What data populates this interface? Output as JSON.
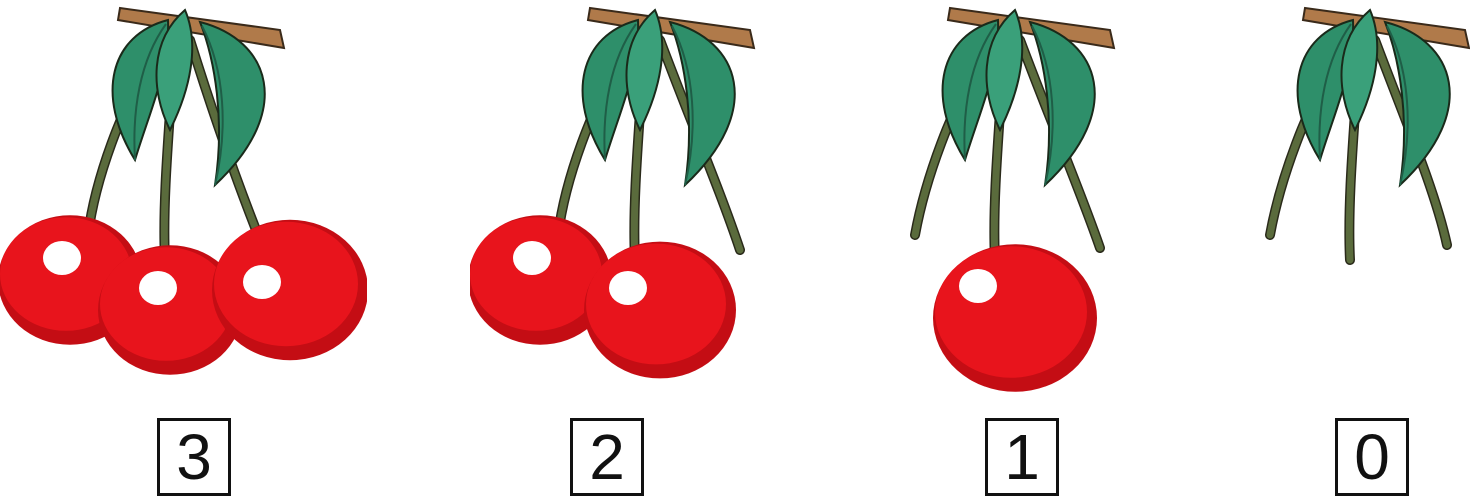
{
  "panels": [
    {
      "label": "3",
      "cherries": 3
    },
    {
      "label": "2",
      "cherries": 2
    },
    {
      "label": "1",
      "cherries": 1
    },
    {
      "label": "0",
      "cherries": 0
    }
  ],
  "colors": {
    "cherry": "#e8141c",
    "cherry_shadow": "#c40d14",
    "highlight": "#ffffff",
    "stem": "#5a6b3c",
    "leaf": "#2e8f6a",
    "leaf_dark": "#1f5e47",
    "branch": "#b07a4a"
  }
}
